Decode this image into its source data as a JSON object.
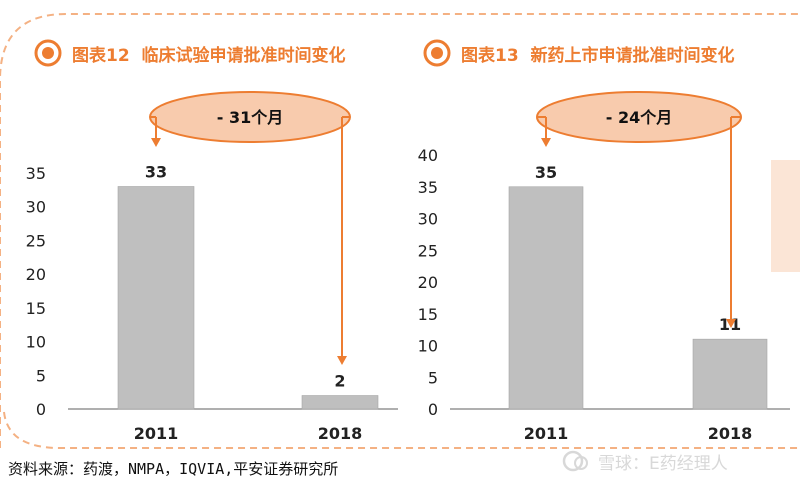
{
  "colors": {
    "accent": "#ED7D31",
    "frame": "#F4B183",
    "callout_fill": "#F8CBAD",
    "bar": "#BFBFBF",
    "axis": "#7F7F7F",
    "side_panel": "#FBE5D6"
  },
  "chart_data": [
    {
      "type": "bar",
      "title": "图表12  临床试验申请批准时间变化",
      "categories": [
        "2011",
        "2018"
      ],
      "values": [
        33,
        2
      ],
      "value_labels": [
        "33",
        "2"
      ],
      "ylim": [
        0,
        35
      ],
      "yticks": [
        "0",
        "5",
        "10",
        "15",
        "20",
        "25",
        "30",
        "35"
      ],
      "callout": "- 31个月",
      "grid": false,
      "legend": "none"
    },
    {
      "type": "bar",
      "title": "图表13  新药上市申请批准时间变化",
      "categories": [
        "2011",
        "2018"
      ],
      "values": [
        35,
        11
      ],
      "value_labels": [
        "35",
        "11"
      ],
      "ylim": [
        0,
        40
      ],
      "yticks": [
        "0",
        "5",
        "10",
        "15",
        "20",
        "25",
        "30",
        "35",
        "40"
      ],
      "callout": "- 24个月",
      "grid": false,
      "legend": "none"
    }
  ],
  "footer": {
    "source": "资料来源：药渡，NMPA，IQVIA,平安证券研究所"
  },
  "watermark": {
    "icon": "snowball-logo-icon",
    "text": "雪球：E药经理人"
  }
}
